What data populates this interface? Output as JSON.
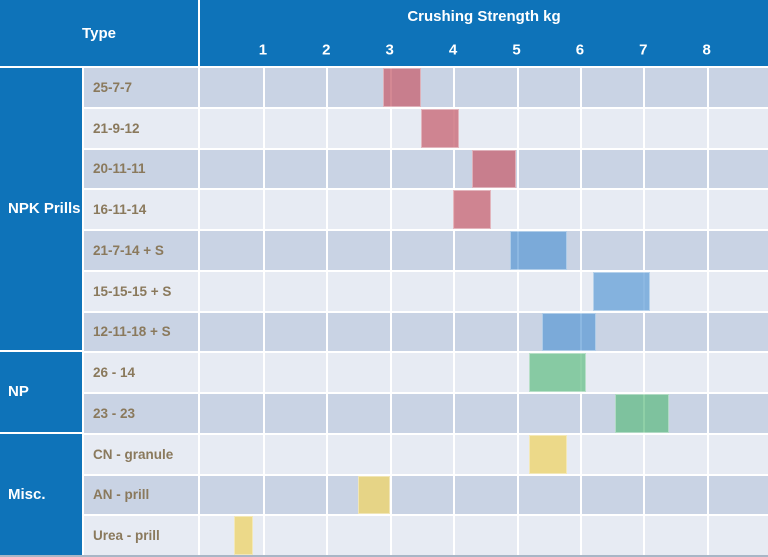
{
  "header": {
    "type_label": "Type"
  },
  "chart_data": {
    "type": "bar",
    "variant": "horizontal-range-bars",
    "title": "Crushing Strength kg",
    "xlabel": "Crushing Strength kg",
    "ylabel": "Type",
    "x_axis": {
      "min": 0,
      "max": 8.95,
      "ticks": [
        1,
        2,
        3,
        4,
        5,
        6,
        7,
        8
      ]
    },
    "grid": "on",
    "groups": [
      {
        "label": "NPK Prills",
        "rows": [
          {
            "label": "25-7-7",
            "range_kg": [
              2.9,
              3.5
            ],
            "color": "red"
          },
          {
            "label": "21-9-12",
            "range_kg": [
              3.5,
              4.1
            ],
            "color": "red"
          },
          {
            "label": "20-11-11",
            "range_kg": [
              4.3,
              5.0
            ],
            "color": "red"
          },
          {
            "label": "16-11-14",
            "range_kg": [
              4.0,
              4.6
            ],
            "color": "red"
          },
          {
            "label": "21-7-14 + S",
            "range_kg": [
              4.9,
              5.8
            ],
            "color": "blue"
          },
          {
            "label": "15-15-15 + S",
            "range_kg": [
              6.2,
              7.1
            ],
            "color": "blue"
          },
          {
            "label": "12-11-18 + S",
            "range_kg": [
              5.4,
              6.25
            ],
            "color": "blue"
          }
        ]
      },
      {
        "label": "NP",
        "rows": [
          {
            "label": "26 - 14",
            "range_kg": [
              5.2,
              6.1
            ],
            "color": "green"
          },
          {
            "label": "23 - 23",
            "range_kg": [
              6.55,
              7.4
            ],
            "color": "green"
          }
        ]
      },
      {
        "label": "Misc.",
        "rows": [
          {
            "label": "CN - granule",
            "range_kg": [
              5.2,
              5.8
            ],
            "color": "yellow"
          },
          {
            "label": "AN - prill",
            "range_kg": [
              2.5,
              3.0
            ],
            "color": "yellow"
          },
          {
            "label": "Urea - prill",
            "range_kg": [
              0.55,
              0.85
            ],
            "color": "yellow"
          }
        ]
      }
    ],
    "colors": {
      "red": "rgba(200,103,116,0.78)",
      "blue": "rgba(85,150,212,0.68)",
      "green": "rgba(90,185,125,0.68)",
      "yellow": "rgba(238,212,110,0.80)",
      "header_blue": "#0e73b9",
      "row_dark": "#c9d3e4",
      "row_light": "#e7ebf3",
      "label_text": "#8a795c"
    }
  }
}
